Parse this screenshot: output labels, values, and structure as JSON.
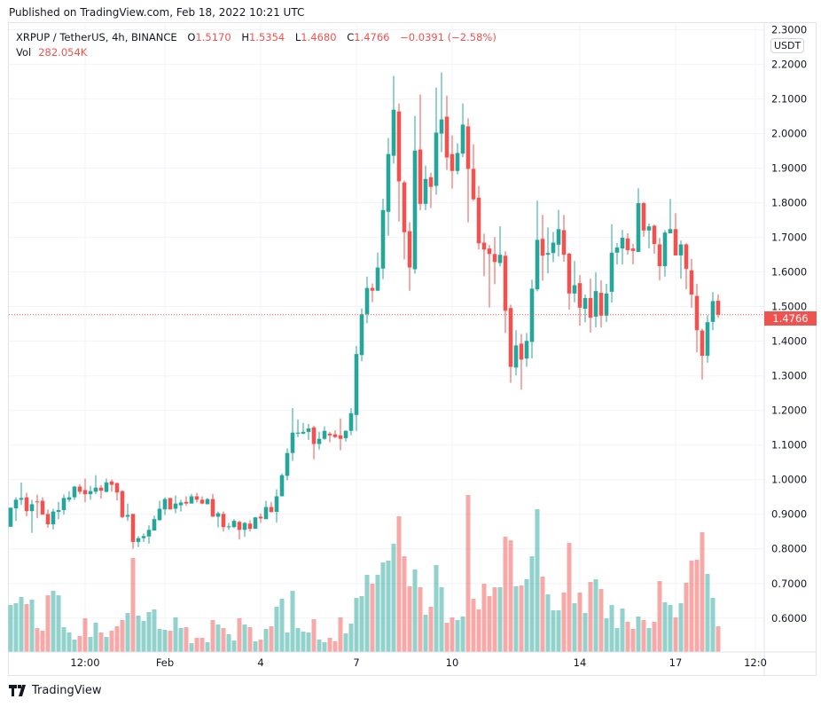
{
  "header": {
    "published": "Published on TradingView.com, Feb 18, 2022 10:21 UTC"
  },
  "legend": {
    "symbol": "XRPUP / TetherUS, 4h, BINANCE",
    "o_label": "O",
    "open": "1.5170",
    "h_label": "H",
    "high": "1.5354",
    "l_label": "L",
    "low": "1.4680",
    "c_label": "C",
    "close": "1.4766",
    "change": "−0.0391 (−2.58%)",
    "vol_label": "Vol",
    "volume": "282.054K"
  },
  "price_axis": {
    "currency": "USDT",
    "last_price": "1.4766"
  },
  "footer": {
    "brand": "TradingView",
    "logo_icon": "tradingview-logo-icon"
  },
  "colors": {
    "up": "#26a69a",
    "down": "#ef5350",
    "grid": "#f0f3fa",
    "text": "#131722"
  },
  "chart_data": {
    "type": "candlestick",
    "symbol": "XRPUP / TetherUS",
    "interval": "4h",
    "ylim": [
      0.502,
      2.322
    ],
    "grid": true,
    "y_ticks": [
      "0.6000",
      "0.7000",
      "0.8000",
      "0.9000",
      "1.0000",
      "1.1000",
      "1.2000",
      "1.3000",
      "1.4000",
      "1.5000",
      "1.6000",
      "1.7000",
      "1.8000",
      "1.9000",
      "2.0000",
      "2.1000",
      "2.2000",
      "2.3000"
    ],
    "x_ticks": [
      {
        "label": "12:00",
        "candle_index": 14
      },
      {
        "label": "Feb",
        "candle_index": 29
      },
      {
        "label": "4",
        "candle_index": 47
      },
      {
        "label": "7",
        "candle_index": 65
      },
      {
        "label": "10",
        "candle_index": 83
      },
      {
        "label": "14",
        "candle_index": 107
      },
      {
        "label": "17",
        "candle_index": 125
      },
      {
        "label": "12:0",
        "candle_index": 140
      }
    ],
    "candles_ohlc": [
      [
        0.864,
        0.919,
        0.863,
        0.919
      ],
      [
        0.917,
        0.949,
        0.881,
        0.942
      ],
      [
        0.942,
        0.992,
        0.927,
        0.947
      ],
      [
        0.949,
        0.962,
        0.894,
        0.909
      ],
      [
        0.909,
        0.942,
        0.846,
        0.929
      ],
      [
        0.937,
        0.957,
        0.889,
        0.935
      ],
      [
        0.939,
        0.949,
        0.899,
        0.899
      ],
      [
        0.901,
        0.914,
        0.861,
        0.871
      ],
      [
        0.871,
        0.916,
        0.856,
        0.908
      ],
      [
        0.907,
        0.936,
        0.886,
        0.912
      ],
      [
        0.912,
        0.957,
        0.899,
        0.947
      ],
      [
        0.942,
        0.967,
        0.935,
        0.949
      ],
      [
        0.949,
        0.982,
        0.942,
        0.98
      ],
      [
        0.98,
        0.987,
        0.958,
        0.965
      ],
      [
        0.97,
        1.003,
        0.935,
        0.958
      ],
      [
        0.958,
        0.982,
        0.942,
        0.967
      ],
      [
        0.965,
        1.013,
        0.958,
        0.977
      ],
      [
        0.977,
        0.985,
        0.945,
        0.968
      ],
      [
        0.965,
        1.003,
        0.963,
        0.992
      ],
      [
        0.995,
        1.0,
        0.965,
        0.985
      ],
      [
        0.99,
        0.992,
        0.94,
        0.963
      ],
      [
        0.967,
        0.969,
        0.889,
        0.892
      ],
      [
        0.893,
        0.931,
        0.881,
        0.898
      ],
      [
        0.901,
        0.901,
        0.8,
        0.82
      ],
      [
        0.82,
        0.837,
        0.805,
        0.831
      ],
      [
        0.831,
        0.845,
        0.82,
        0.837
      ],
      [
        0.836,
        0.868,
        0.815,
        0.855
      ],
      [
        0.853,
        0.896,
        0.853,
        0.886
      ],
      [
        0.883,
        0.939,
        0.881,
        0.916
      ],
      [
        0.914,
        0.949,
        0.898,
        0.944
      ],
      [
        0.947,
        0.947,
        0.914,
        0.914
      ],
      [
        0.916,
        0.954,
        0.903,
        0.931
      ],
      [
        0.926,
        0.942,
        0.908,
        0.934
      ],
      [
        0.936,
        0.952,
        0.924,
        0.931
      ],
      [
        0.931,
        0.959,
        0.931,
        0.952
      ],
      [
        0.952,
        0.962,
        0.934,
        0.942
      ],
      [
        0.942,
        0.952,
        0.929,
        0.931
      ],
      [
        0.929,
        0.947,
        0.929,
        0.944
      ],
      [
        0.944,
        0.959,
        0.893,
        0.893
      ],
      [
        0.893,
        0.908,
        0.862,
        0.903
      ],
      [
        0.901,
        0.908,
        0.85,
        0.863
      ],
      [
        0.863,
        0.875,
        0.855,
        0.865
      ],
      [
        0.863,
        0.886,
        0.86,
        0.881
      ],
      [
        0.878,
        0.881,
        0.827,
        0.855
      ],
      [
        0.855,
        0.878,
        0.835,
        0.875
      ],
      [
        0.873,
        0.883,
        0.85,
        0.858
      ],
      [
        0.858,
        0.893,
        0.858,
        0.891
      ],
      [
        0.893,
        0.903,
        0.875,
        0.888
      ],
      [
        0.886,
        0.939,
        0.886,
        0.921
      ],
      [
        0.921,
        0.936,
        0.906,
        0.906
      ],
      [
        0.907,
        0.972,
        0.876,
        0.952
      ],
      [
        0.952,
        1.018,
        0.952,
        1.013
      ],
      [
        1.011,
        1.09,
        0.998,
        1.077
      ],
      [
        1.077,
        1.207,
        1.054,
        1.136
      ],
      [
        1.133,
        1.174,
        1.123,
        1.136
      ],
      [
        1.133,
        1.164,
        1.131,
        1.138
      ],
      [
        1.138,
        1.161,
        1.115,
        1.148
      ],
      [
        1.151,
        1.156,
        1.059,
        1.103
      ],
      [
        1.103,
        1.138,
        1.087,
        1.118
      ],
      [
        1.118,
        1.154,
        1.115,
        1.141
      ],
      [
        1.133,
        1.138,
        1.108,
        1.128
      ],
      [
        1.131,
        1.143,
        1.12,
        1.123
      ],
      [
        1.128,
        1.177,
        1.085,
        1.118
      ],
      [
        1.12,
        1.143,
        1.11,
        1.141
      ],
      [
        1.141,
        1.207,
        1.128,
        1.192
      ],
      [
        1.187,
        1.386,
        1.141,
        1.363
      ],
      [
        1.36,
        1.495,
        1.342,
        1.478
      ],
      [
        1.478,
        1.587,
        1.452,
        1.554
      ],
      [
        1.554,
        1.567,
        1.513,
        1.546
      ],
      [
        1.546,
        1.656,
        1.546,
        1.613
      ],
      [
        1.61,
        1.812,
        1.58,
        1.779
      ],
      [
        1.774,
        1.987,
        1.705,
        1.941
      ],
      [
        1.936,
        2.167,
        1.913,
        2.069
      ],
      [
        2.064,
        2.087,
        1.746,
        1.862
      ],
      [
        1.859,
        1.864,
        1.636,
        1.715
      ],
      [
        1.718,
        1.744,
        1.546,
        1.613
      ],
      [
        1.608,
        2.051,
        1.595,
        1.951
      ],
      [
        1.954,
        2.113,
        1.779,
        1.797
      ],
      [
        1.797,
        1.908,
        1.779,
        1.869
      ],
      [
        1.874,
        1.887,
        1.785,
        1.846
      ],
      [
        1.849,
        2.133,
        1.823,
        2.003
      ],
      [
        2.0,
        2.177,
        1.946,
        2.041
      ],
      [
        2.049,
        2.11,
        1.895,
        1.931
      ],
      [
        1.941,
        1.995,
        1.841,
        1.892
      ],
      [
        1.892,
        1.972,
        1.882,
        1.944
      ],
      [
        1.942,
        2.087,
        1.932,
        2.026
      ],
      [
        2.021,
        2.044,
        1.744,
        1.898
      ],
      [
        1.898,
        1.969,
        1.805,
        1.81
      ],
      [
        1.815,
        1.849,
        1.665,
        1.683
      ],
      [
        1.685,
        1.711,
        1.588,
        1.665
      ],
      [
        1.668,
        1.678,
        1.498,
        1.652
      ],
      [
        1.652,
        1.701,
        1.565,
        1.629
      ],
      [
        1.626,
        1.732,
        1.616,
        1.65
      ],
      [
        1.647,
        1.66,
        1.424,
        1.488
      ],
      [
        1.496,
        1.506,
        1.28,
        1.326
      ],
      [
        1.324,
        1.432,
        1.301,
        1.388
      ],
      [
        1.393,
        1.421,
        1.26,
        1.347
      ],
      [
        1.35,
        1.424,
        1.326,
        1.401
      ],
      [
        1.398,
        1.578,
        1.35,
        1.552
      ],
      [
        1.55,
        1.806,
        1.544,
        1.693
      ],
      [
        1.696,
        1.765,
        1.575,
        1.647
      ],
      [
        1.65,
        1.729,
        1.596,
        1.655
      ],
      [
        1.655,
        1.716,
        1.629,
        1.685
      ],
      [
        1.679,
        1.78,
        1.645,
        1.724
      ],
      [
        1.721,
        1.765,
        1.63,
        1.65
      ],
      [
        1.653,
        1.656,
        1.491,
        1.538
      ],
      [
        1.538,
        1.632,
        1.512,
        1.562
      ],
      [
        1.568,
        1.591,
        1.445,
        1.497
      ],
      [
        1.494,
        1.535,
        1.455,
        1.525
      ],
      [
        1.525,
        1.581,
        1.425,
        1.468
      ],
      [
        1.471,
        1.599,
        1.44,
        1.545
      ],
      [
        1.54,
        1.576,
        1.44,
        1.474
      ],
      [
        1.474,
        1.566,
        1.456,
        1.538
      ],
      [
        1.543,
        1.738,
        1.512,
        1.656
      ],
      [
        1.656,
        1.684,
        1.622,
        1.671
      ],
      [
        1.668,
        1.722,
        1.622,
        1.699
      ],
      [
        1.697,
        1.712,
        1.65,
        1.663
      ],
      [
        1.668,
        1.681,
        1.622,
        1.661
      ],
      [
        1.658,
        1.842,
        1.658,
        1.799
      ],
      [
        1.799,
        1.802,
        1.702,
        1.72
      ],
      [
        1.72,
        1.74,
        1.668,
        1.732
      ],
      [
        1.734,
        1.737,
        1.653,
        1.681
      ],
      [
        1.68,
        1.698,
        1.576,
        1.617
      ],
      [
        1.617,
        1.721,
        1.587,
        1.714
      ],
      [
        1.712,
        1.811,
        1.712,
        1.724
      ],
      [
        1.724,
        1.77,
        1.648,
        1.648
      ],
      [
        1.648,
        1.691,
        1.581,
        1.68
      ],
      [
        1.68,
        1.683,
        1.55,
        1.609
      ],
      [
        1.605,
        1.638,
        1.497,
        1.535
      ],
      [
        1.531,
        1.566,
        1.368,
        1.432
      ],
      [
        1.431,
        1.436,
        1.289,
        1.358
      ],
      [
        1.358,
        1.475,
        1.338,
        1.455
      ],
      [
        1.456,
        1.542,
        1.432,
        1.516
      ],
      [
        1.517,
        1.5354,
        1.468,
        1.4766
      ]
    ],
    "volume_k": [
      515,
      535,
      603,
      525,
      574,
      263,
      233,
      622,
      671,
      622,
      272,
      214,
      136,
      175,
      370,
      165,
      321,
      214,
      165,
      233,
      282,
      350,
      428,
      1031,
      399,
      340,
      438,
      467,
      253,
      243,
      233,
      379,
      263,
      272,
      97,
      156,
      156,
      107,
      350,
      302,
      263,
      195,
      126,
      370,
      302,
      272,
      117,
      136,
      253,
      282,
      496,
      584,
      214,
      671,
      263,
      224,
      214,
      360,
      136,
      107,
      156,
      117,
      379,
      204,
      311,
      593,
      613,
      846,
      749,
      846,
      982,
      1002,
      1187,
      1488,
      1050,
      720,
      905,
      710,
      408,
      496,
      953,
      710,
      321,
      379,
      350,
      389,
      1722,
      584,
      467,
      749,
      613,
      710,
      710,
      1264,
      1225,
      720,
      729,
      798,
      1050,
      1566,
      827,
      632,
      457,
      457,
      652,
      1196,
      535,
      652,
      428,
      768,
      798,
      691,
      370,
      515,
      263,
      477,
      331,
      253,
      389,
      350,
      263,
      331,
      778,
      545,
      515,
      379,
      535,
      759,
      1002,
      1012,
      1313,
      856,
      593,
      282.054
    ],
    "last_price": 1.4766
  }
}
